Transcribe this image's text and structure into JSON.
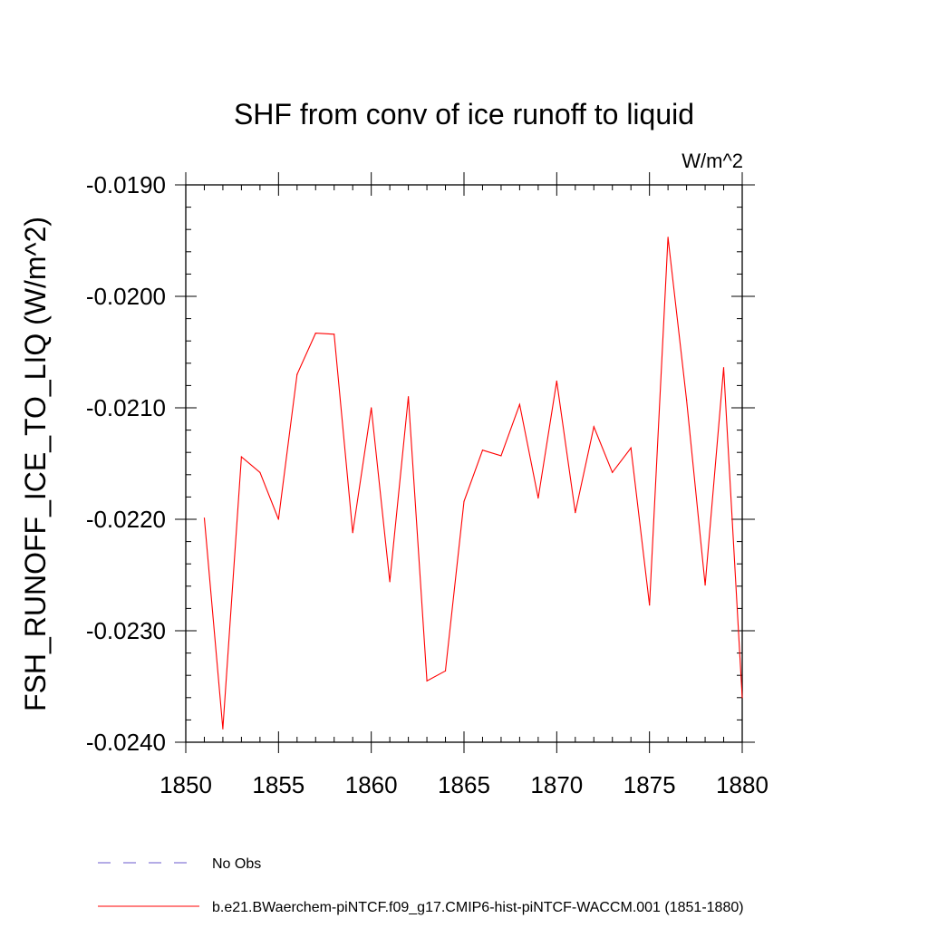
{
  "chart_data": {
    "type": "line",
    "title": "SHF from conv of ice runoff to liquid",
    "units": "W/m^2",
    "ylabel": "FSH_RUNOFF_ICE_TO_LIQ  (W/m^2)",
    "xlabel": "",
    "xlim": [
      1850,
      1880
    ],
    "ylim": [
      -0.024,
      -0.019
    ],
    "x_ticks": [
      1850,
      1855,
      1860,
      1865,
      1870,
      1875,
      1880
    ],
    "x_tick_labels": [
      "1850",
      "1855",
      "1860",
      "1865",
      "1870",
      "1875",
      "1880"
    ],
    "y_ticks": [
      -0.019,
      -0.02,
      -0.021,
      -0.022,
      -0.023,
      -0.024
    ],
    "y_tick_labels": [
      "-0.0190",
      "-0.0200",
      "-0.0210",
      "-0.0220",
      "-0.0230",
      "-0.0240"
    ],
    "grid": false,
    "legend_position": "bottom-left",
    "series": [
      {
        "name": "b.e21.BWaerchem-piNTCF.f09_g17.CMIP6-hist-piNTCF-WACCM.001 (1851-1880)",
        "color": "#ff0000",
        "style": "solid",
        "x": [
          1851,
          1852,
          1853,
          1854,
          1855,
          1856,
          1857,
          1858,
          1859,
          1860,
          1861,
          1862,
          1863,
          1864,
          1865,
          1866,
          1867,
          1868,
          1869,
          1870,
          1871,
          1872,
          1873,
          1874,
          1875,
          1876,
          1877,
          1878,
          1879,
          1880
        ],
        "values": [
          -0.02199,
          -0.02388,
          -0.02144,
          -0.02158,
          -0.022,
          -0.0207,
          -0.02033,
          -0.02034,
          -0.02212,
          -0.021,
          -0.02256,
          -0.0209,
          -0.02345,
          -0.02336,
          -0.02184,
          -0.02138,
          -0.02143,
          -0.02097,
          -0.02181,
          -0.02076,
          -0.02194,
          -0.02117,
          -0.02158,
          -0.02136,
          -0.02277,
          -0.01947,
          -0.02093,
          -0.02259,
          -0.02064,
          -0.0236
        ]
      }
    ],
    "legend": [
      {
        "label": "No Obs",
        "color": "#6a5acd",
        "style": "dashed"
      },
      {
        "label": "b.e21.BWaerchem-piNTCF.f09_g17.CMIP6-hist-piNTCF-WACCM.001 (1851-1880)",
        "color": "#ff0000",
        "style": "solid"
      }
    ]
  }
}
